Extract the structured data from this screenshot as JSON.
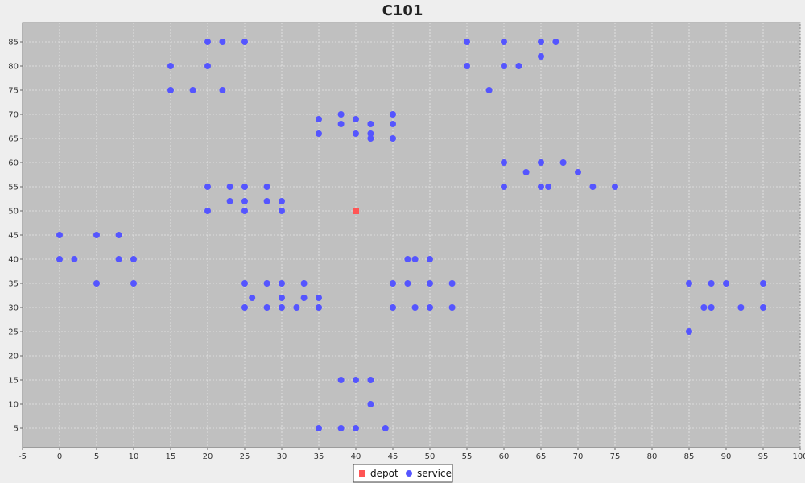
{
  "chart_data": {
    "type": "scatter",
    "title": "C101",
    "xlabel": "",
    "ylabel": "",
    "xlim": [
      -5,
      100
    ],
    "ylim": [
      1,
      89
    ],
    "x_ticks": [
      -5,
      0,
      5,
      10,
      15,
      20,
      25,
      30,
      35,
      40,
      45,
      50,
      55,
      60,
      65,
      70,
      75,
      80,
      85,
      90,
      95,
      100
    ],
    "y_ticks": [
      5,
      10,
      15,
      20,
      25,
      30,
      35,
      40,
      45,
      50,
      55,
      60,
      65,
      70,
      75,
      80,
      85
    ],
    "grid": true,
    "legend_position": "bottom-center",
    "series": [
      {
        "name": "depot",
        "marker": "square",
        "color": "#ff5555",
        "points": [
          [
            40,
            50
          ]
        ]
      },
      {
        "name": "service",
        "marker": "circle",
        "color": "#5555ff",
        "points": [
          [
            20,
            85
          ],
          [
            22,
            85
          ],
          [
            25,
            85
          ],
          [
            15,
            80
          ],
          [
            20,
            80
          ],
          [
            15,
            75
          ],
          [
            18,
            75
          ],
          [
            22,
            75
          ],
          [
            55,
            85
          ],
          [
            60,
            85
          ],
          [
            65,
            85
          ],
          [
            67,
            85
          ],
          [
            65,
            82
          ],
          [
            55,
            80
          ],
          [
            60,
            80
          ],
          [
            62,
            80
          ],
          [
            58,
            75
          ],
          [
            35,
            69
          ],
          [
            38,
            70
          ],
          [
            45,
            70
          ],
          [
            38,
            68
          ],
          [
            40,
            69
          ],
          [
            42,
            68
          ],
          [
            45,
            68
          ],
          [
            35,
            66
          ],
          [
            40,
            66
          ],
          [
            42,
            66
          ],
          [
            42,
            65
          ],
          [
            45,
            65
          ],
          [
            60,
            60
          ],
          [
            65,
            60
          ],
          [
            68,
            60
          ],
          [
            63,
            58
          ],
          [
            70,
            58
          ],
          [
            60,
            55
          ],
          [
            65,
            55
          ],
          [
            66,
            55
          ],
          [
            72,
            55
          ],
          [
            75,
            55
          ],
          [
            20,
            55
          ],
          [
            23,
            55
          ],
          [
            25,
            55
          ],
          [
            28,
            55
          ],
          [
            23,
            52
          ],
          [
            25,
            52
          ],
          [
            28,
            52
          ],
          [
            30,
            52
          ],
          [
            20,
            50
          ],
          [
            25,
            50
          ],
          [
            30,
            50
          ],
          [
            0,
            45
          ],
          [
            5,
            45
          ],
          [
            8,
            45
          ],
          [
            0,
            40
          ],
          [
            2,
            40
          ],
          [
            8,
            40
          ],
          [
            10,
            40
          ],
          [
            5,
            35
          ],
          [
            10,
            35
          ],
          [
            47,
            40
          ],
          [
            48,
            40
          ],
          [
            50,
            40
          ],
          [
            45,
            35
          ],
          [
            47,
            35
          ],
          [
            50,
            35
          ],
          [
            53,
            35
          ],
          [
            45,
            30
          ],
          [
            48,
            30
          ],
          [
            50,
            30
          ],
          [
            53,
            30
          ],
          [
            25,
            35
          ],
          [
            28,
            35
          ],
          [
            30,
            35
          ],
          [
            33,
            35
          ],
          [
            26,
            32
          ],
          [
            30,
            32
          ],
          [
            33,
            32
          ],
          [
            35,
            32
          ],
          [
            25,
            30
          ],
          [
            28,
            30
          ],
          [
            30,
            30
          ],
          [
            32,
            30
          ],
          [
            35,
            30
          ],
          [
            85,
            35
          ],
          [
            88,
            35
          ],
          [
            90,
            35
          ],
          [
            95,
            35
          ],
          [
            87,
            30
          ],
          [
            88,
            30
          ],
          [
            92,
            30
          ],
          [
            95,
            30
          ],
          [
            85,
            25
          ],
          [
            38,
            15
          ],
          [
            40,
            15
          ],
          [
            42,
            15
          ],
          [
            42,
            10
          ],
          [
            35,
            5
          ],
          [
            38,
            5
          ],
          [
            40,
            5
          ],
          [
            44,
            5
          ]
        ]
      }
    ]
  }
}
